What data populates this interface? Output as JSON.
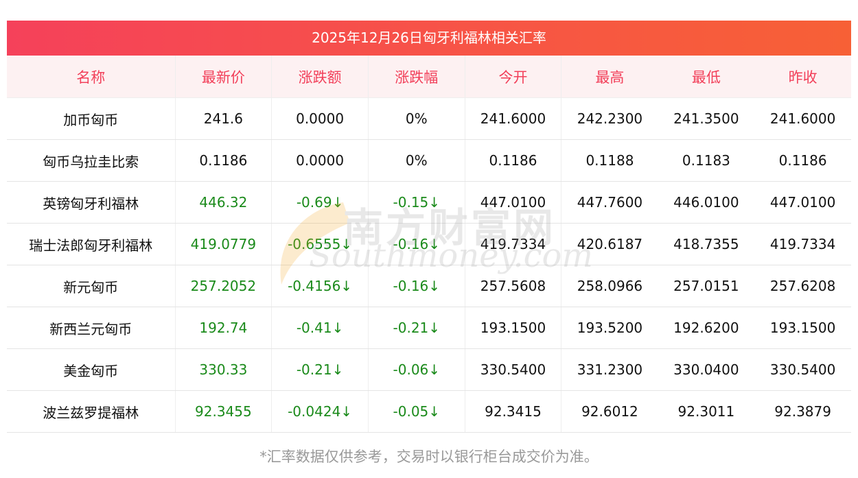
{
  "title": "2025年12月26日匈牙利福林相关汇率",
  "columns": [
    "名称",
    "最新价",
    "涨跌额",
    "涨跌幅",
    "今开",
    "最高",
    "最低",
    "昨收"
  ],
  "rows": [
    {
      "name": "加币匈币",
      "latest": "241.6",
      "change": "0.0000",
      "pct": "0%",
      "open": "241.6000",
      "high": "242.2300",
      "low": "241.3500",
      "prev": "241.6000",
      "down": false
    },
    {
      "name": "匈币乌拉圭比索",
      "latest": "0.1186",
      "change": "0.0000",
      "pct": "0%",
      "open": "0.1186",
      "high": "0.1188",
      "low": "0.1183",
      "prev": "0.1186",
      "down": false
    },
    {
      "name": "英镑匈牙利福林",
      "latest": "446.32",
      "change": "-0.69↓",
      "pct": "-0.15↓",
      "open": "447.0100",
      "high": "447.7600",
      "low": "446.0100",
      "prev": "447.0100",
      "down": true
    },
    {
      "name": "瑞士法郎匈牙利福林",
      "latest": "419.0779",
      "change": "-0.6555↓",
      "pct": "-0.16↓",
      "open": "419.7334",
      "high": "420.6187",
      "low": "418.7355",
      "prev": "419.7334",
      "down": true
    },
    {
      "name": "新元匈币",
      "latest": "257.2052",
      "change": "-0.4156↓",
      "pct": "-0.16↓",
      "open": "257.5608",
      "high": "258.0966",
      "low": "257.0151",
      "prev": "257.6208",
      "down": true
    },
    {
      "name": "新西兰元匈币",
      "latest": "192.74",
      "change": "-0.41↓",
      "pct": "-0.21↓",
      "open": "193.1500",
      "high": "193.5200",
      "low": "192.6200",
      "prev": "193.1500",
      "down": true
    },
    {
      "name": "美金匈币",
      "latest": "330.33",
      "change": "-0.21↓",
      "pct": "-0.06↓",
      "open": "330.5400",
      "high": "331.2300",
      "low": "330.0400",
      "prev": "330.5400",
      "down": true
    },
    {
      "name": "波兰兹罗提福林",
      "latest": "92.3455",
      "change": "-0.0424↓",
      "pct": "-0.05↓",
      "open": "92.3415",
      "high": "92.6012",
      "low": "92.3011",
      "prev": "92.3879",
      "down": true
    }
  ],
  "footnote": "*汇率数据仅供参考，交易时以银行柜台成交价为准。",
  "watermark": {
    "cn": "南方财富网",
    "en": "Southmoney.com"
  },
  "colors": {
    "header_text": "#f2405a",
    "down": "#1a8a1a",
    "title_bg": "#f64b4f"
  }
}
